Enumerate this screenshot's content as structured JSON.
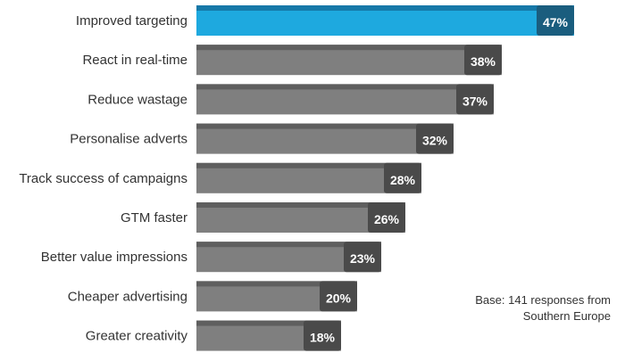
{
  "chart_data": {
    "type": "bar",
    "orientation": "horizontal",
    "categories": [
      "Improved targeting",
      "React in real-time",
      "Reduce wastage",
      "Personalise adverts",
      "Track success of campaigns",
      "GTM faster",
      "Better value impressions",
      "Cheaper advertising",
      "Greater creativity"
    ],
    "values": [
      47,
      38,
      37,
      32,
      28,
      26,
      23,
      20,
      18
    ],
    "value_labels": [
      "47%",
      "38%",
      "37%",
      "32%",
      "28%",
      "26%",
      "23%",
      "20%",
      "18%"
    ],
    "highlight_index": 0,
    "colors": {
      "highlight_bar": "#1ea9df",
      "highlight_top": "#1678a8",
      "highlight_tab": "#1a5d7e",
      "bar": "#7f7f7f",
      "bar_top": "#5f5f5f",
      "tab": "#4a4a4a"
    },
    "note": "Base: 141 responses from Southern Europe"
  }
}
